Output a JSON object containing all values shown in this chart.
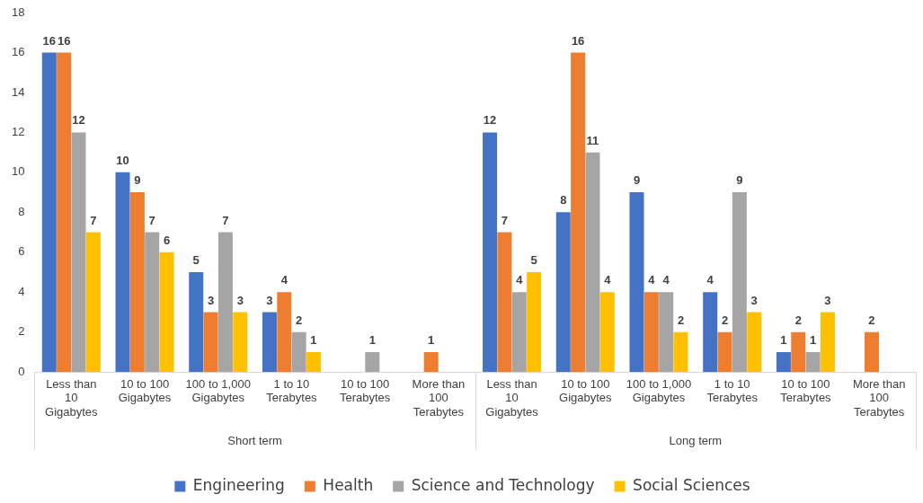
{
  "chart_data": {
    "type": "bar",
    "categories": [
      "Less than 10 Gigabytes",
      "10 to 100 Gigabytes",
      "100 to 1,000 Gigabytes",
      "1 to 10 Terabytes",
      "10 to 100 Terabytes",
      "More than 100 Terabytes",
      "Less than 10 Gigabytes",
      "10 to 100 Gigabytes",
      "100 to 1,000 Gigabytes",
      "1 to 10 Terabytes",
      "10 to 100 Terabytes",
      "More than 100 Terabytes"
    ],
    "series": [
      {
        "name": "Engineering",
        "color": "#4472c4",
        "values": [
          16,
          10,
          5,
          3,
          null,
          null,
          12,
          8,
          9,
          4,
          1,
          null
        ]
      },
      {
        "name": "Health",
        "color": "#ed7d31",
        "values": [
          16,
          9,
          3,
          4,
          null,
          1,
          7,
          16,
          4,
          2,
          2,
          2
        ]
      },
      {
        "name": "Science and Technology",
        "color": "#a5a5a5",
        "values": [
          12,
          7,
          7,
          2,
          1,
          null,
          4,
          11,
          4,
          9,
          1,
          null
        ]
      },
      {
        "name": "Social Sciences",
        "color": "#ffc000",
        "values": [
          7,
          6,
          3,
          1,
          null,
          null,
          5,
          4,
          2,
          3,
          3,
          null
        ]
      }
    ],
    "ylim": [
      0,
      18
    ],
    "yticks": [
      0,
      2,
      4,
      6,
      8,
      10,
      12,
      14,
      16,
      18
    ],
    "grid": false,
    "legend": "bottom",
    "data_labels": true,
    "annotations": [
      "Short term",
      "Long term"
    ]
  }
}
